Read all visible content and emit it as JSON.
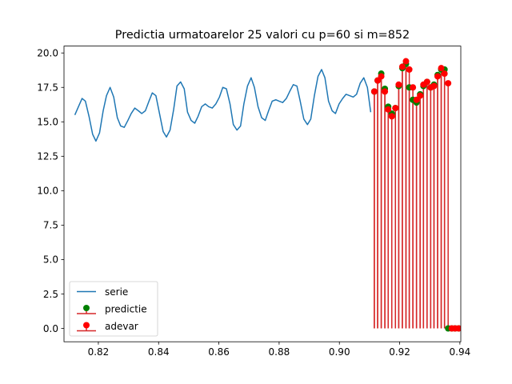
{
  "chart_data": {
    "type": "line",
    "title": "Predictia urmatoarelor 25 valori cu p=60 si m=852",
    "xlabel": "",
    "ylabel": "",
    "xlim": [
      0.8086,
      0.9403
    ],
    "ylim": [
      -0.97,
      20.5
    ],
    "x_ticks": [
      0.82,
      0.84,
      0.86,
      0.88,
      0.9,
      0.92,
      0.94
    ],
    "x_tick_labels": [
      "0.82",
      "0.84",
      "0.86",
      "0.88",
      "0.90",
      "0.92",
      "0.94"
    ],
    "y_ticks": [
      0,
      2.5,
      5,
      7.5,
      10,
      12.5,
      15,
      17.5,
      20
    ],
    "y_tick_labels": [
      "0.0",
      "2.5",
      "5.0",
      "7.5",
      "10.0",
      "12.5",
      "15.0",
      "17.5",
      "20.0"
    ],
    "grid": false,
    "legend_position": "lower-left",
    "legend": {
      "entries": [
        {
          "label": "serie",
          "kind": "line",
          "color": "#1f77b4"
        },
        {
          "label": "predictie",
          "kind": "stem",
          "marker_color": "#008000",
          "line_color": "#d62728"
        },
        {
          "label": "adevar",
          "kind": "stem",
          "marker_color": "#ff0000",
          "line_color": "#d62728"
        }
      ]
    },
    "series": [
      {
        "name": "serie",
        "kind": "line",
        "color": "#1f77b4",
        "x": [
          0.8122,
          0.8134,
          0.8146,
          0.8157,
          0.8169,
          0.8181,
          0.8192,
          0.8204,
          0.8216,
          0.8227,
          0.8239,
          0.8251,
          0.8263,
          0.8274,
          0.8286,
          0.8298,
          0.8309,
          0.8321,
          0.8333,
          0.8344,
          0.8356,
          0.8368,
          0.8379,
          0.8391,
          0.8403,
          0.8415,
          0.8426,
          0.8438,
          0.845,
          0.8461,
          0.8473,
          0.8485,
          0.8496,
          0.8508,
          0.852,
          0.8531,
          0.8543,
          0.8555,
          0.8566,
          0.8578,
          0.859,
          0.8602,
          0.8613,
          0.8625,
          0.8637,
          0.8648,
          0.866,
          0.8672,
          0.8683,
          0.8695,
          0.8707,
          0.8718,
          0.873,
          0.8742,
          0.8754,
          0.8765,
          0.8777,
          0.8789,
          0.88,
          0.8812,
          0.8824,
          0.8835,
          0.8847,
          0.8859,
          0.887,
          0.8882,
          0.8894,
          0.8905,
          0.8917,
          0.8929,
          0.8941,
          0.8952,
          0.8964,
          0.8976,
          0.8987,
          0.8999,
          0.9011,
          0.9022,
          0.9034,
          0.9046,
          0.9057,
          0.9069,
          0.9081,
          0.9093,
          0.9104
        ],
        "y": [
          15.5,
          16.1,
          16.7,
          16.5,
          15.4,
          14.1,
          13.6,
          14.2,
          15.8,
          16.9,
          17.5,
          16.8,
          15.3,
          14.7,
          14.6,
          15.1,
          15.6,
          16.0,
          15.8,
          15.6,
          15.8,
          16.5,
          17.1,
          16.9,
          15.6,
          14.3,
          13.9,
          14.4,
          15.9,
          17.6,
          17.9,
          17.4,
          15.7,
          15.1,
          14.9,
          15.4,
          16.1,
          16.3,
          16.1,
          16.0,
          16.3,
          16.8,
          17.5,
          17.4,
          16.3,
          14.8,
          14.4,
          14.7,
          16.3,
          17.6,
          18.2,
          17.5,
          16.1,
          15.3,
          15.1,
          15.8,
          16.5,
          16.6,
          16.5,
          16.4,
          16.7,
          17.2,
          17.7,
          17.6,
          16.5,
          15.2,
          14.8,
          15.2,
          16.9,
          18.3,
          18.8,
          18.2,
          16.5,
          15.8,
          15.6,
          16.3,
          16.7,
          17.0,
          16.9,
          16.8,
          17.0,
          17.8,
          18.2,
          17.5,
          15.7
        ]
      },
      {
        "name": "predictie",
        "kind": "stem",
        "marker_color": "#008000",
        "line_color": "#d62728",
        "x": [
          0.9116,
          0.9127,
          0.9139,
          0.9151,
          0.9162,
          0.9174,
          0.9186,
          0.9197,
          0.9209,
          0.9221,
          0.9232,
          0.9244,
          0.9256,
          0.9268,
          0.9279,
          0.9291,
          0.9303,
          0.9314,
          0.9326,
          0.9338,
          0.9349,
          0.9361,
          0.9373,
          0.9384,
          0.9396
        ],
        "y": [
          17.2,
          18.0,
          18.5,
          17.4,
          16.1,
          15.6,
          16.0,
          17.6,
          18.9,
          19.2,
          17.5,
          16.6,
          16.4,
          17.0,
          17.6,
          17.9,
          17.5,
          17.7,
          18.4,
          18.8,
          18.8,
          0,
          0,
          0,
          0
        ]
      },
      {
        "name": "adevar",
        "kind": "stem",
        "marker_color": "#ff0000",
        "line_color": "#d62728",
        "x": [
          0.9116,
          0.9127,
          0.9139,
          0.9151,
          0.9162,
          0.9174,
          0.9186,
          0.9197,
          0.9209,
          0.9221,
          0.9232,
          0.9244,
          0.9256,
          0.9268,
          0.9279,
          0.9291,
          0.9303,
          0.9314,
          0.9326,
          0.9338,
          0.9349,
          0.9361,
          0.9373,
          0.9384,
          0.9396
        ],
        "y": [
          17.2,
          18.0,
          18.3,
          17.2,
          15.9,
          15.4,
          16.0,
          17.7,
          19.0,
          19.4,
          18.8,
          17.5,
          16.6,
          16.9,
          17.7,
          17.9,
          17.5,
          17.6,
          18.3,
          18.9,
          18.5,
          17.8,
          0,
          0,
          0
        ]
      }
    ]
  }
}
